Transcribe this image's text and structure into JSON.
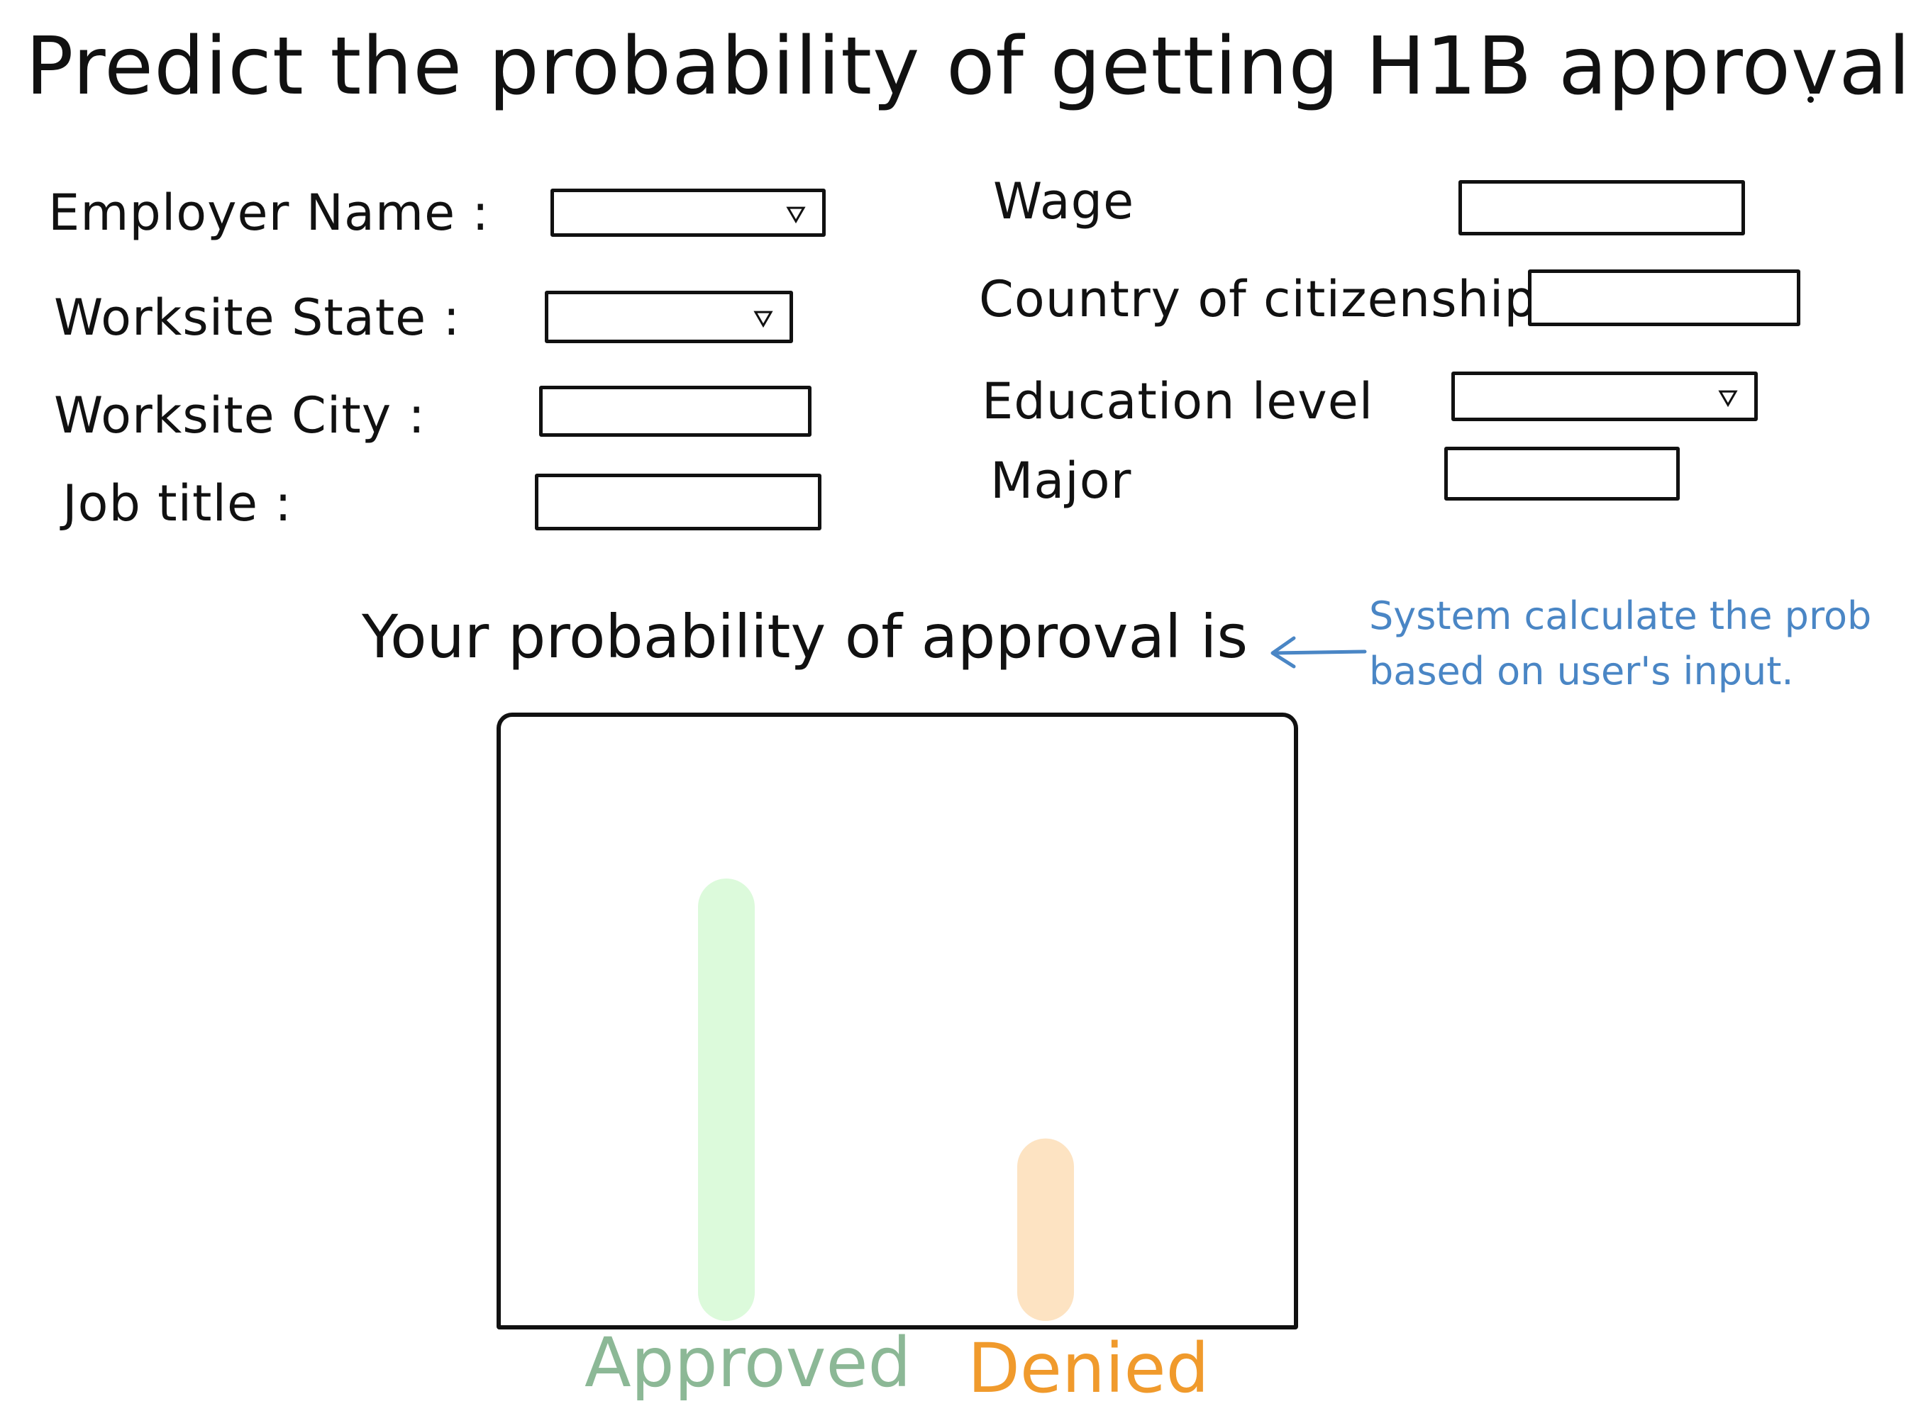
{
  "page": {
    "title": "Predict the probability of getting H1B approval"
  },
  "form": {
    "left_fields": [
      {
        "label": "Employer Name :",
        "type": "dropdown",
        "value": ""
      },
      {
        "label": "Worksite State :",
        "type": "dropdown",
        "value": ""
      },
      {
        "label": "Worksite City :",
        "type": "text",
        "value": ""
      },
      {
        "label": "Job title :",
        "type": "text",
        "value": ""
      }
    ],
    "right_fields": [
      {
        "label": "Wage",
        "type": "text",
        "value": ""
      },
      {
        "label": "Country of citizenship :",
        "type": "text",
        "value": ""
      },
      {
        "label": "Education level",
        "type": "dropdown",
        "value": ""
      },
      {
        "label": "Major",
        "type": "text",
        "value": ""
      }
    ]
  },
  "result": {
    "heading": "Your probability of approval is",
    "annotation_line1": "System calculate the prob",
    "annotation_line2": "based on user's input."
  },
  "colors": {
    "ink": "#111111",
    "annotation": "#4a86c5",
    "approved_bar": "#dcfadb",
    "approved_label": "#8cb896",
    "denied_bar": "#fde3c2",
    "denied_label": "#f09a2c"
  },
  "icons": {
    "dropdown": "triangle-down-icon",
    "pointer": "arrow-left-icon"
  },
  "chart_data": {
    "type": "bar",
    "categories": [
      "Approved",
      "Denied"
    ],
    "values": [
      0.8,
      0.33
    ],
    "ylim": [
      0,
      1
    ],
    "grid": false,
    "bar_colors": [
      "#dcfadb",
      "#fde3c2"
    ],
    "label_colors": [
      "#8cb896",
      "#f09a2c"
    ]
  }
}
